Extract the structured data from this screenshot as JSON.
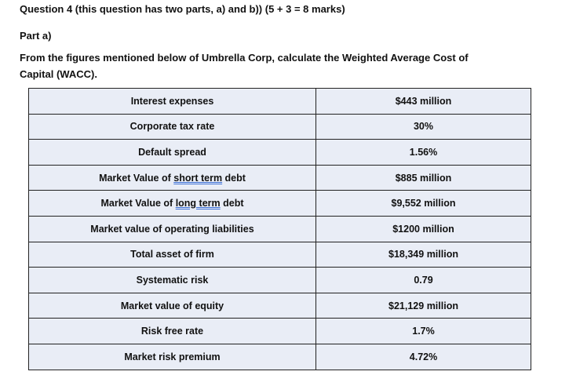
{
  "question_title": "Question 4 (this question has two parts, a) and b)) (5 + 3 = 8 marks)",
  "part_label": "Part a)",
  "instruction_line1": "From the figures mentioned below of Umbrella Corp, calculate the Weighted Average Cost of",
  "instruction_line2": "Capital (WACC).",
  "table": [
    {
      "label": "Interest expenses",
      "value": "$443 million"
    },
    {
      "label": "Corporate tax rate",
      "value": "30%"
    },
    {
      "label": "Default spread",
      "value": "1.56%"
    },
    {
      "label_pre": "Market Value of ",
      "label_mark": "short term",
      "label_post": " debt",
      "value": "$885 million"
    },
    {
      "label_pre": "Market Value of ",
      "label_mark": "long term",
      "label_post": " debt",
      "value": "$9,552 million"
    },
    {
      "label": "Market value of operating liabilities",
      "value": "$1200 million"
    },
    {
      "label": "Total asset of firm",
      "value": "$18,349 million"
    },
    {
      "label": "Systematic risk",
      "value": "0.79"
    },
    {
      "label": "Market value of equity",
      "value": "$21,129 million"
    },
    {
      "label": "Risk free rate",
      "value": "1.7%"
    },
    {
      "label": "Market risk premium",
      "value": "4.72%"
    }
  ]
}
